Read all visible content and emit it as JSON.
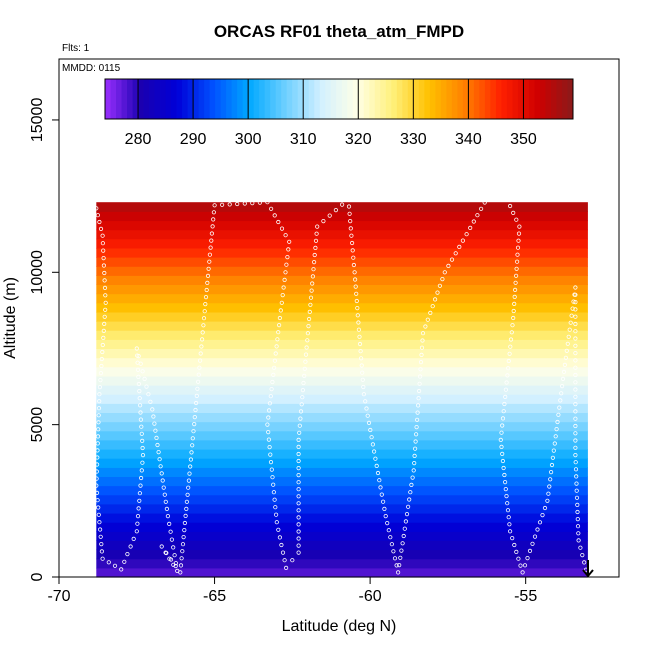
{
  "chart_data": {
    "type": "heatmap",
    "title": "ORCAS RF01 theta_atm_FMPD",
    "note_flights": "Flts: 1",
    "note_date": "MMDD: 0115",
    "xlabel": "Latitude (deg N)",
    "ylabel": "Altitude (m)",
    "xlim": [
      -70,
      -52
    ],
    "ylim": [
      0,
      17000
    ],
    "x_ticks": [
      -70,
      -65,
      -60,
      -55
    ],
    "x_tick_labels": [
      "-70",
      "-65",
      "-60",
      "-55"
    ],
    "y_ticks": [
      0,
      5000,
      10000,
      15000
    ],
    "y_tick_labels": [
      "0",
      "5000",
      "10000",
      "15000"
    ],
    "colorbar": {
      "min": 274,
      "max": 359,
      "ticks": [
        280,
        290,
        300,
        310,
        320,
        330,
        340,
        350
      ],
      "tick_labels": [
        "280",
        "290",
        "300",
        "310",
        "320",
        "330",
        "340",
        "350"
      ],
      "colors": [
        "#9b30ff",
        "#1a00b0",
        "#0000d8",
        "#0050ff",
        "#00a8ff",
        "#6ccfff",
        "#d2f0ff",
        "#ffffe6",
        "#fff07a",
        "#ffc000",
        "#ff7f00",
        "#ff2000",
        "#d00000",
        "#8b1a1a"
      ]
    },
    "field": {
      "lat_range": [
        -68.8,
        -53.0
      ],
      "alt_range": [
        0,
        12300
      ],
      "theta_surface": 277,
      "theta_top": 356,
      "band_step_m": 300
    },
    "flight_track": [
      {
        "lat": -68.8,
        "alt": 12100
      },
      {
        "lat": -68.6,
        "alt": 11200
      },
      {
        "lat": -68.5,
        "alt": 9000
      },
      {
        "lat": -68.7,
        "alt": 6000
      },
      {
        "lat": -68.8,
        "alt": 3000
      },
      {
        "lat": -68.6,
        "alt": 600
      },
      {
        "lat": -68.0,
        "alt": 250
      },
      {
        "lat": -67.5,
        "alt": 1500
      },
      {
        "lat": -67.3,
        "alt": 4000
      },
      {
        "lat": -67.5,
        "alt": 7500
      },
      {
        "lat": -67.0,
        "alt": 5500
      },
      {
        "lat": -66.5,
        "alt": 2000
      },
      {
        "lat": -66.2,
        "alt": 200
      },
      {
        "lat": -66.7,
        "alt": 1000
      },
      {
        "lat": -66.1,
        "alt": 150
      },
      {
        "lat": -65.0,
        "alt": 12200
      },
      {
        "lat": -63.3,
        "alt": 12300
      },
      {
        "lat": -62.6,
        "alt": 11000
      },
      {
        "lat": -62.9,
        "alt": 8500
      },
      {
        "lat": -63.3,
        "alt": 5000
      },
      {
        "lat": -63.0,
        "alt": 1800
      },
      {
        "lat": -62.7,
        "alt": 300
      },
      {
        "lat": -62.3,
        "alt": 800
      },
      {
        "lat": -62.3,
        "alt": 4500
      },
      {
        "lat": -61.7,
        "alt": 11500
      },
      {
        "lat": -60.7,
        "alt": 12400
      },
      {
        "lat": -60.5,
        "alt": 10000
      },
      {
        "lat": -60.2,
        "alt": 6000
      },
      {
        "lat": -59.5,
        "alt": 2000
      },
      {
        "lat": -59.1,
        "alt": 150
      },
      {
        "lat": -58.6,
        "alt": 3500
      },
      {
        "lat": -58.3,
        "alt": 8000
      },
      {
        "lat": -57.6,
        "alt": 10000
      },
      {
        "lat": -56.2,
        "alt": 12500
      },
      {
        "lat": -55.6,
        "alt": 12400
      },
      {
        "lat": -55.2,
        "alt": 11500
      },
      {
        "lat": -55.4,
        "alt": 8500
      },
      {
        "lat": -55.8,
        "alt": 4500
      },
      {
        "lat": -55.5,
        "alt": 1500
      },
      {
        "lat": -55.1,
        "alt": 150
      },
      {
        "lat": -54.3,
        "alt": 2500
      },
      {
        "lat": -53.8,
        "alt": 6500
      },
      {
        "lat": -53.4,
        "alt": 9500
      },
      {
        "lat": -53.4,
        "alt": 4000
      },
      {
        "lat": -53.3,
        "alt": 1200
      },
      {
        "lat": -53.0,
        "alt": 0
      }
    ]
  }
}
